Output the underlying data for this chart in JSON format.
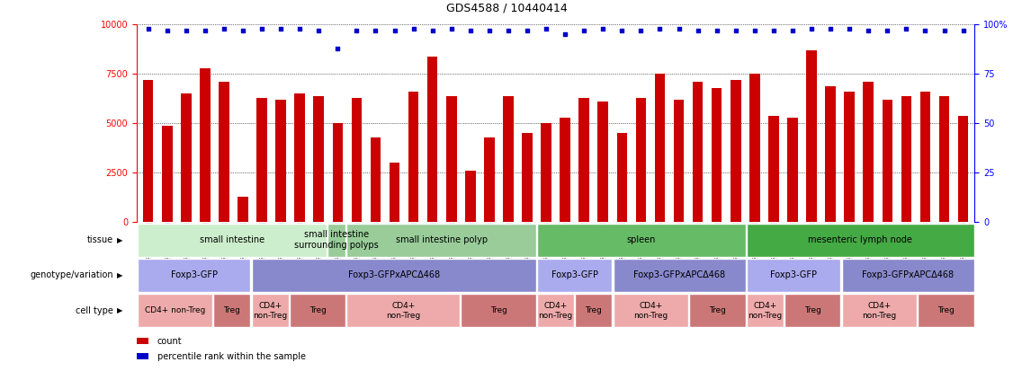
{
  "title": "GDS4588 / 10440414",
  "samples": [
    "GSM1011468",
    "GSM1011469",
    "GSM1011477",
    "GSM1011478",
    "GSM1011482",
    "GSM1011497",
    "GSM1011498",
    "GSM1011466",
    "GSM1011467",
    "GSM1011499",
    "GSM1011489",
    "GSM1011504",
    "GSM1011476",
    "GSM1011490",
    "GSM1011505",
    "GSM1011475",
    "GSM1011487",
    "GSM1011506",
    "GSM1011474",
    "GSM1011488",
    "GSM1011507",
    "GSM1011479",
    "GSM1011494",
    "GSM1011495",
    "GSM1011480",
    "GSM1011496",
    "GSM1011473",
    "GSM1011484",
    "GSM1011502",
    "GSM1011472",
    "GSM1011483",
    "GSM1011503",
    "GSM1011465",
    "GSM1011491",
    "GSM1011492",
    "GSM1011464",
    "GSM1011481",
    "GSM1011493",
    "GSM1011471",
    "GSM1011486",
    "GSM1011500",
    "GSM1011470",
    "GSM1011485",
    "GSM1011501"
  ],
  "bar_heights": [
    7200,
    4900,
    6500,
    7800,
    7100,
    1300,
    6300,
    6200,
    6500,
    6400,
    5000,
    6300,
    4300,
    3000,
    6600,
    8400,
    6400,
    2600,
    4300,
    6400,
    4500,
    5000,
    5300,
    6300,
    6100,
    4500,
    6300,
    7500,
    6200,
    7100,
    6800,
    7200,
    7500,
    5400,
    5300,
    8700,
    6900,
    6600,
    7100,
    6200,
    6400,
    6600,
    6400,
    5400
  ],
  "blue_dots": [
    98,
    97,
    97,
    97,
    98,
    97,
    98,
    98,
    98,
    97,
    88,
    97,
    97,
    97,
    98,
    97,
    98,
    97,
    97,
    97,
    97,
    98,
    95,
    97,
    98,
    97,
    97,
    98,
    98,
    97,
    97,
    97,
    97,
    97,
    97,
    98,
    98,
    98,
    97,
    97,
    98,
    97,
    97,
    97
  ],
  "bar_color": "#cc0000",
  "dot_color": "#0000cc",
  "ylim_left": [
    0,
    10000
  ],
  "ylim_right": [
    0,
    100
  ],
  "yticks_left": [
    0,
    2500,
    5000,
    7500,
    10000
  ],
  "yticks_right": [
    0,
    25,
    50,
    75,
    100
  ],
  "tissue_segments": [
    {
      "label": "small intestine",
      "start": 0,
      "end": 10,
      "color": "#cceecc"
    },
    {
      "label": "small intestine\nsurrounding polyps",
      "start": 10,
      "end": 11,
      "color": "#99cc99"
    },
    {
      "label": "small intestine polyp",
      "start": 11,
      "end": 21,
      "color": "#99cc99"
    },
    {
      "label": "spleen",
      "start": 21,
      "end": 32,
      "color": "#66bb66"
    },
    {
      "label": "mesenteric lymph node",
      "start": 32,
      "end": 44,
      "color": "#44aa44"
    }
  ],
  "genotype_segments": [
    {
      "label": "Foxp3-GFP",
      "start": 0,
      "end": 6,
      "color": "#aaaaee"
    },
    {
      "label": "Foxp3-GFPxAPCΔ468",
      "start": 6,
      "end": 21,
      "color": "#8888cc"
    },
    {
      "label": "Foxp3-GFP",
      "start": 21,
      "end": 25,
      "color": "#aaaaee"
    },
    {
      "label": "Foxp3-GFPxAPCΔ468",
      "start": 25,
      "end": 32,
      "color": "#8888cc"
    },
    {
      "label": "Foxp3-GFP",
      "start": 32,
      "end": 37,
      "color": "#aaaaee"
    },
    {
      "label": "Foxp3-GFPxAPCΔ468",
      "start": 37,
      "end": 44,
      "color": "#8888cc"
    }
  ],
  "celltype_segments": [
    {
      "label": "CD4+ non-Treg",
      "start": 0,
      "end": 4,
      "color": "#eeaaaa"
    },
    {
      "label": "Treg",
      "start": 4,
      "end": 6,
      "color": "#cc7777"
    },
    {
      "label": "CD4+\nnon-Treg",
      "start": 6,
      "end": 8,
      "color": "#eeaaaa"
    },
    {
      "label": "Treg",
      "start": 8,
      "end": 11,
      "color": "#cc7777"
    },
    {
      "label": "CD4+\nnon-Treg",
      "start": 11,
      "end": 17,
      "color": "#eeaaaa"
    },
    {
      "label": "Treg",
      "start": 17,
      "end": 21,
      "color": "#cc7777"
    },
    {
      "label": "CD4+\nnon-Treg",
      "start": 21,
      "end": 23,
      "color": "#eeaaaa"
    },
    {
      "label": "Treg",
      "start": 23,
      "end": 25,
      "color": "#cc7777"
    },
    {
      "label": "CD4+\nnon-Treg",
      "start": 25,
      "end": 29,
      "color": "#eeaaaa"
    },
    {
      "label": "Treg",
      "start": 29,
      "end": 32,
      "color": "#cc7777"
    },
    {
      "label": "CD4+\nnon-Treg",
      "start": 32,
      "end": 34,
      "color": "#eeaaaa"
    },
    {
      "label": "Treg",
      "start": 34,
      "end": 37,
      "color": "#cc7777"
    },
    {
      "label": "CD4+\nnon-Treg",
      "start": 37,
      "end": 41,
      "color": "#eeaaaa"
    },
    {
      "label": "Treg",
      "start": 41,
      "end": 44,
      "color": "#cc7777"
    }
  ],
  "row_labels": [
    "tissue",
    "genotype/variation",
    "cell type"
  ],
  "legend_items": [
    {
      "color": "#cc0000",
      "label": "count"
    },
    {
      "color": "#0000cc",
      "label": "percentile rank within the sample"
    }
  ]
}
